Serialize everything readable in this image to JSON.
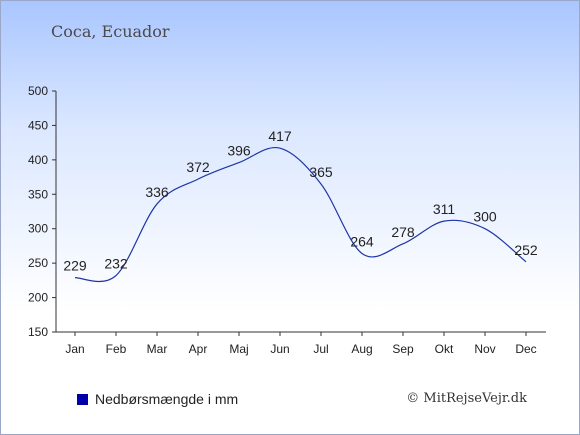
{
  "location": "Coca, Ecuador",
  "legend_label": "Nedbørsmængde i mm",
  "copyright": "© MitRejseVejr.dk",
  "colors": {
    "line": "#1f35a6",
    "legend": "#0000aa",
    "axis": "#333333"
  },
  "chart_data": {
    "type": "line",
    "categories": [
      "Jan",
      "Feb",
      "Mar",
      "Apr",
      "Maj",
      "Jun",
      "Jul",
      "Aug",
      "Sep",
      "Okt",
      "Nov",
      "Dec"
    ],
    "series": [
      {
        "name": "Nedbørsmængde i mm",
        "values": [
          229,
          232,
          336,
          372,
          396,
          417,
          365,
          264,
          278,
          311,
          300,
          252
        ]
      }
    ],
    "ylim": [
      150,
      500
    ],
    "yticks": [
      150,
      200,
      250,
      300,
      350,
      400,
      450,
      500
    ],
    "grid": false,
    "legend": "bottom-left"
  }
}
